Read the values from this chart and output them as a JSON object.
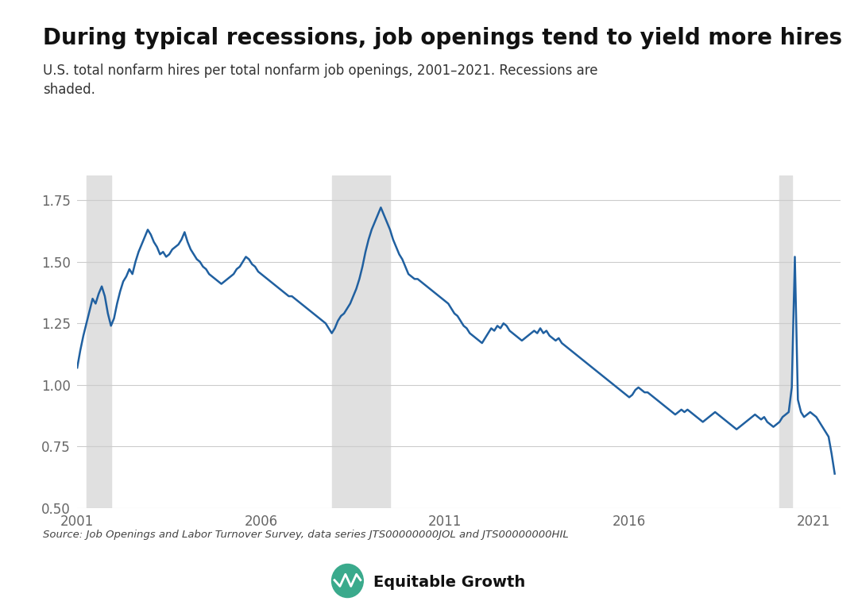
{
  "title": "During typical recessions, job openings tend to yield more hires",
  "subtitle": "U.S. total nonfarm hires per total nonfarm job openings, 2001–2021. Recessions are\nshaded.",
  "source": "Source: Job Openings and Labor Turnover Survey, data series JTS00000000JOL and JTS00000000HIL",
  "line_color": "#2060a0",
  "background_color": "#ffffff",
  "plot_bg_color": "#ffffff",
  "recession_color": "#e0e0e0",
  "recessions": [
    {
      "start": 2001.25,
      "end": 2001.917
    },
    {
      "start": 2007.917,
      "end": 2009.5
    },
    {
      "start": 2020.083,
      "end": 2020.417
    }
  ],
  "ylim": [
    0.5,
    1.85
  ],
  "yticks": [
    0.5,
    0.75,
    1.0,
    1.25,
    1.5,
    1.75
  ],
  "xticks": [
    2001,
    2006,
    2011,
    2016,
    2021
  ],
  "data": {
    "dates": [
      2001.0,
      2001.083,
      2001.167,
      2001.25,
      2001.333,
      2001.417,
      2001.5,
      2001.583,
      2001.667,
      2001.75,
      2001.833,
      2001.917,
      2002.0,
      2002.083,
      2002.167,
      2002.25,
      2002.333,
      2002.417,
      2002.5,
      2002.583,
      2002.667,
      2002.75,
      2002.833,
      2002.917,
      2003.0,
      2003.083,
      2003.167,
      2003.25,
      2003.333,
      2003.417,
      2003.5,
      2003.583,
      2003.667,
      2003.75,
      2003.833,
      2003.917,
      2004.0,
      2004.083,
      2004.167,
      2004.25,
      2004.333,
      2004.417,
      2004.5,
      2004.583,
      2004.667,
      2004.75,
      2004.833,
      2004.917,
      2005.0,
      2005.083,
      2005.167,
      2005.25,
      2005.333,
      2005.417,
      2005.5,
      2005.583,
      2005.667,
      2005.75,
      2005.833,
      2005.917,
      2006.0,
      2006.083,
      2006.167,
      2006.25,
      2006.333,
      2006.417,
      2006.5,
      2006.583,
      2006.667,
      2006.75,
      2006.833,
      2006.917,
      2007.0,
      2007.083,
      2007.167,
      2007.25,
      2007.333,
      2007.417,
      2007.5,
      2007.583,
      2007.667,
      2007.75,
      2007.833,
      2007.917,
      2008.0,
      2008.083,
      2008.167,
      2008.25,
      2008.333,
      2008.417,
      2008.5,
      2008.583,
      2008.667,
      2008.75,
      2008.833,
      2008.917,
      2009.0,
      2009.083,
      2009.167,
      2009.25,
      2009.333,
      2009.417,
      2009.5,
      2009.583,
      2009.667,
      2009.75,
      2009.833,
      2009.917,
      2010.0,
      2010.083,
      2010.167,
      2010.25,
      2010.333,
      2010.417,
      2010.5,
      2010.583,
      2010.667,
      2010.75,
      2010.833,
      2010.917,
      2011.0,
      2011.083,
      2011.167,
      2011.25,
      2011.333,
      2011.417,
      2011.5,
      2011.583,
      2011.667,
      2011.75,
      2011.833,
      2011.917,
      2012.0,
      2012.083,
      2012.167,
      2012.25,
      2012.333,
      2012.417,
      2012.5,
      2012.583,
      2012.667,
      2012.75,
      2012.833,
      2012.917,
      2013.0,
      2013.083,
      2013.167,
      2013.25,
      2013.333,
      2013.417,
      2013.5,
      2013.583,
      2013.667,
      2013.75,
      2013.833,
      2013.917,
      2014.0,
      2014.083,
      2014.167,
      2014.25,
      2014.333,
      2014.417,
      2014.5,
      2014.583,
      2014.667,
      2014.75,
      2014.833,
      2014.917,
      2015.0,
      2015.083,
      2015.167,
      2015.25,
      2015.333,
      2015.417,
      2015.5,
      2015.583,
      2015.667,
      2015.75,
      2015.833,
      2015.917,
      2016.0,
      2016.083,
      2016.167,
      2016.25,
      2016.333,
      2016.417,
      2016.5,
      2016.583,
      2016.667,
      2016.75,
      2016.833,
      2016.917,
      2017.0,
      2017.083,
      2017.167,
      2017.25,
      2017.333,
      2017.417,
      2017.5,
      2017.583,
      2017.667,
      2017.75,
      2017.833,
      2017.917,
      2018.0,
      2018.083,
      2018.167,
      2018.25,
      2018.333,
      2018.417,
      2018.5,
      2018.583,
      2018.667,
      2018.75,
      2018.833,
      2018.917,
      2019.0,
      2019.083,
      2019.167,
      2019.25,
      2019.333,
      2019.417,
      2019.5,
      2019.583,
      2019.667,
      2019.75,
      2019.833,
      2019.917,
      2020.0,
      2020.083,
      2020.167,
      2020.25,
      2020.333,
      2020.417,
      2020.5,
      2020.583,
      2020.667,
      2020.75,
      2020.833,
      2020.917,
      2021.0,
      2021.083,
      2021.167,
      2021.25,
      2021.333,
      2021.417,
      2021.5,
      2021.583
    ],
    "values": [
      1.07,
      1.14,
      1.2,
      1.25,
      1.3,
      1.35,
      1.33,
      1.37,
      1.4,
      1.36,
      1.29,
      1.24,
      1.27,
      1.33,
      1.38,
      1.42,
      1.44,
      1.47,
      1.45,
      1.5,
      1.54,
      1.57,
      1.6,
      1.63,
      1.61,
      1.58,
      1.56,
      1.53,
      1.54,
      1.52,
      1.53,
      1.55,
      1.56,
      1.57,
      1.59,
      1.62,
      1.58,
      1.55,
      1.53,
      1.51,
      1.5,
      1.48,
      1.47,
      1.45,
      1.44,
      1.43,
      1.42,
      1.41,
      1.42,
      1.43,
      1.44,
      1.45,
      1.47,
      1.48,
      1.5,
      1.52,
      1.51,
      1.49,
      1.48,
      1.46,
      1.45,
      1.44,
      1.43,
      1.42,
      1.41,
      1.4,
      1.39,
      1.38,
      1.37,
      1.36,
      1.36,
      1.35,
      1.34,
      1.33,
      1.32,
      1.31,
      1.3,
      1.29,
      1.28,
      1.27,
      1.26,
      1.25,
      1.23,
      1.21,
      1.23,
      1.26,
      1.28,
      1.29,
      1.31,
      1.33,
      1.36,
      1.39,
      1.43,
      1.48,
      1.54,
      1.59,
      1.63,
      1.66,
      1.69,
      1.72,
      1.69,
      1.66,
      1.63,
      1.59,
      1.56,
      1.53,
      1.51,
      1.48,
      1.45,
      1.44,
      1.43,
      1.43,
      1.42,
      1.41,
      1.4,
      1.39,
      1.38,
      1.37,
      1.36,
      1.35,
      1.34,
      1.33,
      1.31,
      1.29,
      1.28,
      1.26,
      1.24,
      1.23,
      1.21,
      1.2,
      1.19,
      1.18,
      1.17,
      1.19,
      1.21,
      1.23,
      1.22,
      1.24,
      1.23,
      1.25,
      1.24,
      1.22,
      1.21,
      1.2,
      1.19,
      1.18,
      1.19,
      1.2,
      1.21,
      1.22,
      1.21,
      1.23,
      1.21,
      1.22,
      1.2,
      1.19,
      1.18,
      1.19,
      1.17,
      1.16,
      1.15,
      1.14,
      1.13,
      1.12,
      1.11,
      1.1,
      1.09,
      1.08,
      1.07,
      1.06,
      1.05,
      1.04,
      1.03,
      1.02,
      1.01,
      1.0,
      0.99,
      0.98,
      0.97,
      0.96,
      0.95,
      0.96,
      0.98,
      0.99,
      0.98,
      0.97,
      0.97,
      0.96,
      0.95,
      0.94,
      0.93,
      0.92,
      0.91,
      0.9,
      0.89,
      0.88,
      0.89,
      0.9,
      0.89,
      0.9,
      0.89,
      0.88,
      0.87,
      0.86,
      0.85,
      0.86,
      0.87,
      0.88,
      0.89,
      0.88,
      0.87,
      0.86,
      0.85,
      0.84,
      0.83,
      0.82,
      0.83,
      0.84,
      0.85,
      0.86,
      0.87,
      0.88,
      0.87,
      0.86,
      0.87,
      0.85,
      0.84,
      0.83,
      0.84,
      0.85,
      0.87,
      0.88,
      0.89,
      0.99,
      1.52,
      0.94,
      0.89,
      0.87,
      0.88,
      0.89,
      0.88,
      0.87,
      0.85,
      0.83,
      0.81,
      0.79,
      0.72,
      0.64
    ]
  }
}
